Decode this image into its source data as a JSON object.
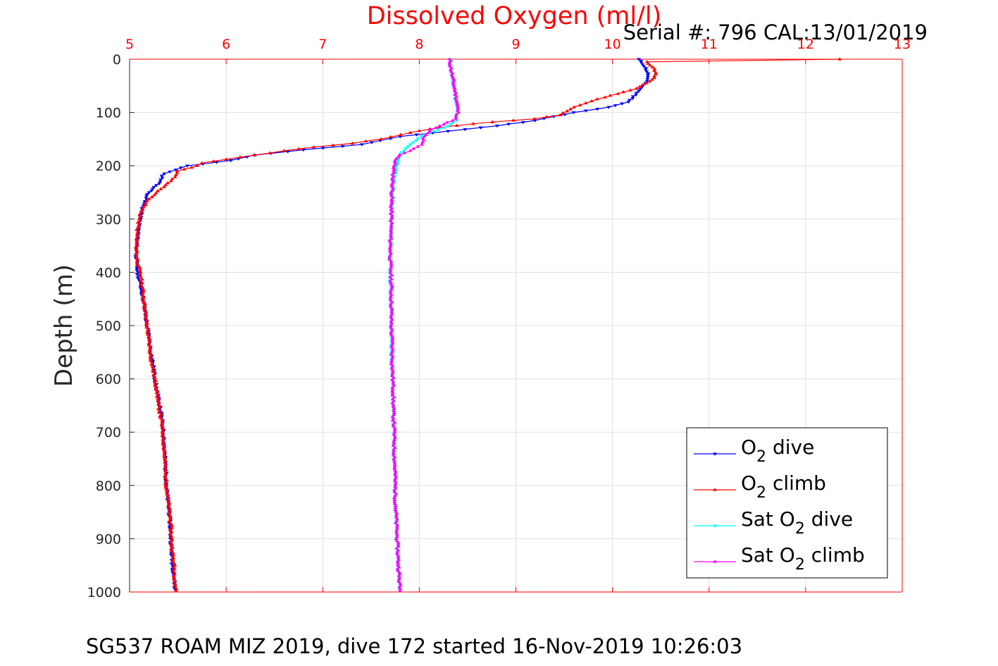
{
  "header": {
    "title": "Dissolved Oxygen (ml/l)",
    "serial": "Serial #: 796  CAL:13/01/2019",
    "footer": "SG537 ROAM MIZ 2019, dive 172 started 16-Nov-2019 10:26:03"
  },
  "colors": {
    "title": "#ff0000",
    "x_axis": "#ff0000",
    "y_axis": "#262626",
    "grid": "#dfdfdf"
  },
  "chart_data": {
    "type": "line",
    "x_axis": {
      "position": "top",
      "range": [
        5,
        13
      ],
      "ticks": [
        5,
        6,
        7,
        8,
        9,
        10,
        11,
        12,
        13
      ]
    },
    "y_axis": {
      "label": "Depth (m)",
      "reversed": true,
      "range": [
        0,
        1000
      ],
      "ticks": [
        0,
        100,
        200,
        300,
        400,
        500,
        600,
        700,
        800,
        900,
        1000
      ]
    },
    "grid": true,
    "legend_placement": "bottom-right",
    "series": [
      {
        "name": "O2 dive",
        "legend": {
          "pre": "O",
          "sub": "2",
          "post": " dive"
        },
        "color": "#0000ff",
        "marker": "triangle-down",
        "points": [
          [
            10.27,
            0
          ],
          [
            10.32,
            10
          ],
          [
            10.35,
            20
          ],
          [
            10.37,
            30
          ],
          [
            10.34,
            45
          ],
          [
            10.27,
            60
          ],
          [
            10.17,
            80
          ],
          [
            9.96,
            90
          ],
          [
            9.6,
            100
          ],
          [
            9.2,
            115
          ],
          [
            8.8,
            125
          ],
          [
            8.3,
            135
          ],
          [
            7.8,
            145
          ],
          [
            7.4,
            160
          ],
          [
            6.8,
            170
          ],
          [
            6.3,
            180
          ],
          [
            6.05,
            190
          ],
          [
            5.6,
            200
          ],
          [
            5.35,
            215
          ],
          [
            5.32,
            230
          ],
          [
            5.2,
            250
          ],
          [
            5.15,
            270
          ],
          [
            5.12,
            290
          ],
          [
            5.1,
            310
          ],
          [
            5.08,
            340
          ],
          [
            5.07,
            370
          ],
          [
            5.08,
            400
          ],
          [
            5.12,
            430
          ],
          [
            5.15,
            460
          ],
          [
            5.17,
            490
          ],
          [
            5.2,
            520
          ],
          [
            5.22,
            550
          ],
          [
            5.25,
            580
          ],
          [
            5.27,
            610
          ],
          [
            5.3,
            640
          ],
          [
            5.33,
            670
          ],
          [
            5.35,
            700
          ],
          [
            5.36,
            730
          ],
          [
            5.37,
            760
          ],
          [
            5.38,
            790
          ],
          [
            5.39,
            820
          ],
          [
            5.41,
            850
          ],
          [
            5.42,
            880
          ],
          [
            5.43,
            910
          ],
          [
            5.44,
            940
          ],
          [
            5.46,
            970
          ],
          [
            5.47,
            995
          ]
        ]
      },
      {
        "name": "O2 climb",
        "legend": {
          "pre": "O",
          "sub": "2",
          "post": " climb"
        },
        "color": "#ff0000",
        "marker": "triangle-up",
        "points": [
          [
            12.35,
            0
          ],
          [
            10.35,
            5
          ],
          [
            10.42,
            15
          ],
          [
            10.45,
            25
          ],
          [
            10.43,
            35
          ],
          [
            10.35,
            45
          ],
          [
            10.25,
            55
          ],
          [
            10.05,
            65
          ],
          [
            9.85,
            75
          ],
          [
            9.6,
            90
          ],
          [
            9.45,
            105
          ],
          [
            9.2,
            112
          ],
          [
            8.75,
            118
          ],
          [
            8.2,
            128
          ],
          [
            7.9,
            138
          ],
          [
            7.6,
            150
          ],
          [
            7.3,
            158
          ],
          [
            6.9,
            165
          ],
          [
            6.6,
            172
          ],
          [
            6.3,
            180
          ],
          [
            6.0,
            188
          ],
          [
            5.75,
            195
          ],
          [
            5.7,
            200
          ],
          [
            5.5,
            210
          ],
          [
            5.45,
            225
          ],
          [
            5.35,
            240
          ],
          [
            5.25,
            255
          ],
          [
            5.17,
            270
          ],
          [
            5.12,
            285
          ],
          [
            5.1,
            300
          ],
          [
            5.08,
            320
          ],
          [
            5.07,
            350
          ],
          [
            5.08,
            380
          ],
          [
            5.12,
            410
          ],
          [
            5.14,
            440
          ],
          [
            5.16,
            470
          ],
          [
            5.18,
            500
          ],
          [
            5.2,
            530
          ],
          [
            5.22,
            560
          ],
          [
            5.25,
            590
          ],
          [
            5.28,
            620
          ],
          [
            5.3,
            650
          ],
          [
            5.33,
            680
          ],
          [
            5.35,
            710
          ],
          [
            5.36,
            740
          ],
          [
            5.37,
            770
          ],
          [
            5.38,
            800
          ],
          [
            5.4,
            830
          ],
          [
            5.42,
            860
          ],
          [
            5.43,
            890
          ],
          [
            5.44,
            920
          ],
          [
            5.46,
            950
          ],
          [
            5.47,
            980
          ],
          [
            5.48,
            998
          ]
        ]
      },
      {
        "name": "Sat O2 dive",
        "legend": {
          "pre": "Sat O",
          "sub": "2",
          "post": " dive"
        },
        "color": "#00ffff",
        "marker": "triangle-down",
        "points": [
          [
            8.32,
            0
          ],
          [
            8.33,
            20
          ],
          [
            8.34,
            40
          ],
          [
            8.37,
            60
          ],
          [
            8.38,
            80
          ],
          [
            8.4,
            100
          ],
          [
            8.38,
            115
          ],
          [
            8.3,
            125
          ],
          [
            8.15,
            135
          ],
          [
            8.02,
            145
          ],
          [
            7.9,
            160
          ],
          [
            7.82,
            175
          ],
          [
            7.78,
            190
          ],
          [
            7.75,
            210
          ],
          [
            7.73,
            240
          ],
          [
            7.72,
            270
          ],
          [
            7.71,
            300
          ],
          [
            7.71,
            340
          ],
          [
            7.7,
            380
          ],
          [
            7.7,
            420
          ],
          [
            7.71,
            460
          ],
          [
            7.71,
            500
          ],
          [
            7.71,
            540
          ],
          [
            7.72,
            580
          ],
          [
            7.73,
            620
          ],
          [
            7.73,
            660
          ],
          [
            7.74,
            700
          ],
          [
            7.74,
            740
          ],
          [
            7.75,
            780
          ],
          [
            7.75,
            820
          ],
          [
            7.76,
            860
          ],
          [
            7.77,
            900
          ],
          [
            7.78,
            940
          ],
          [
            7.79,
            970
          ],
          [
            7.8,
            995
          ]
        ]
      },
      {
        "name": "Sat O2 climb",
        "legend": {
          "pre": "Sat O",
          "sub": "2",
          "post": " climb"
        },
        "color": "#ff00ff",
        "marker": "triangle-up",
        "points": [
          [
            8.31,
            0
          ],
          [
            8.33,
            20
          ],
          [
            8.35,
            40
          ],
          [
            8.37,
            60
          ],
          [
            8.39,
            80
          ],
          [
            8.4,
            100
          ],
          [
            8.38,
            112
          ],
          [
            8.25,
            122
          ],
          [
            8.12,
            132
          ],
          [
            8.05,
            145
          ],
          [
            8.02,
            160
          ],
          [
            7.9,
            172
          ],
          [
            7.8,
            180
          ],
          [
            7.75,
            190
          ],
          [
            7.73,
            210
          ],
          [
            7.72,
            240
          ],
          [
            7.71,
            270
          ],
          [
            7.71,
            300
          ],
          [
            7.7,
            340
          ],
          [
            7.7,
            380
          ],
          [
            7.71,
            420
          ],
          [
            7.71,
            460
          ],
          [
            7.71,
            500
          ],
          [
            7.72,
            540
          ],
          [
            7.72,
            580
          ],
          [
            7.73,
            620
          ],
          [
            7.73,
            660
          ],
          [
            7.74,
            700
          ],
          [
            7.74,
            740
          ],
          [
            7.75,
            780
          ],
          [
            7.75,
            820
          ],
          [
            7.76,
            860
          ],
          [
            7.77,
            900
          ],
          [
            7.78,
            940
          ],
          [
            7.79,
            970
          ],
          [
            7.8,
            998
          ]
        ]
      }
    ]
  }
}
